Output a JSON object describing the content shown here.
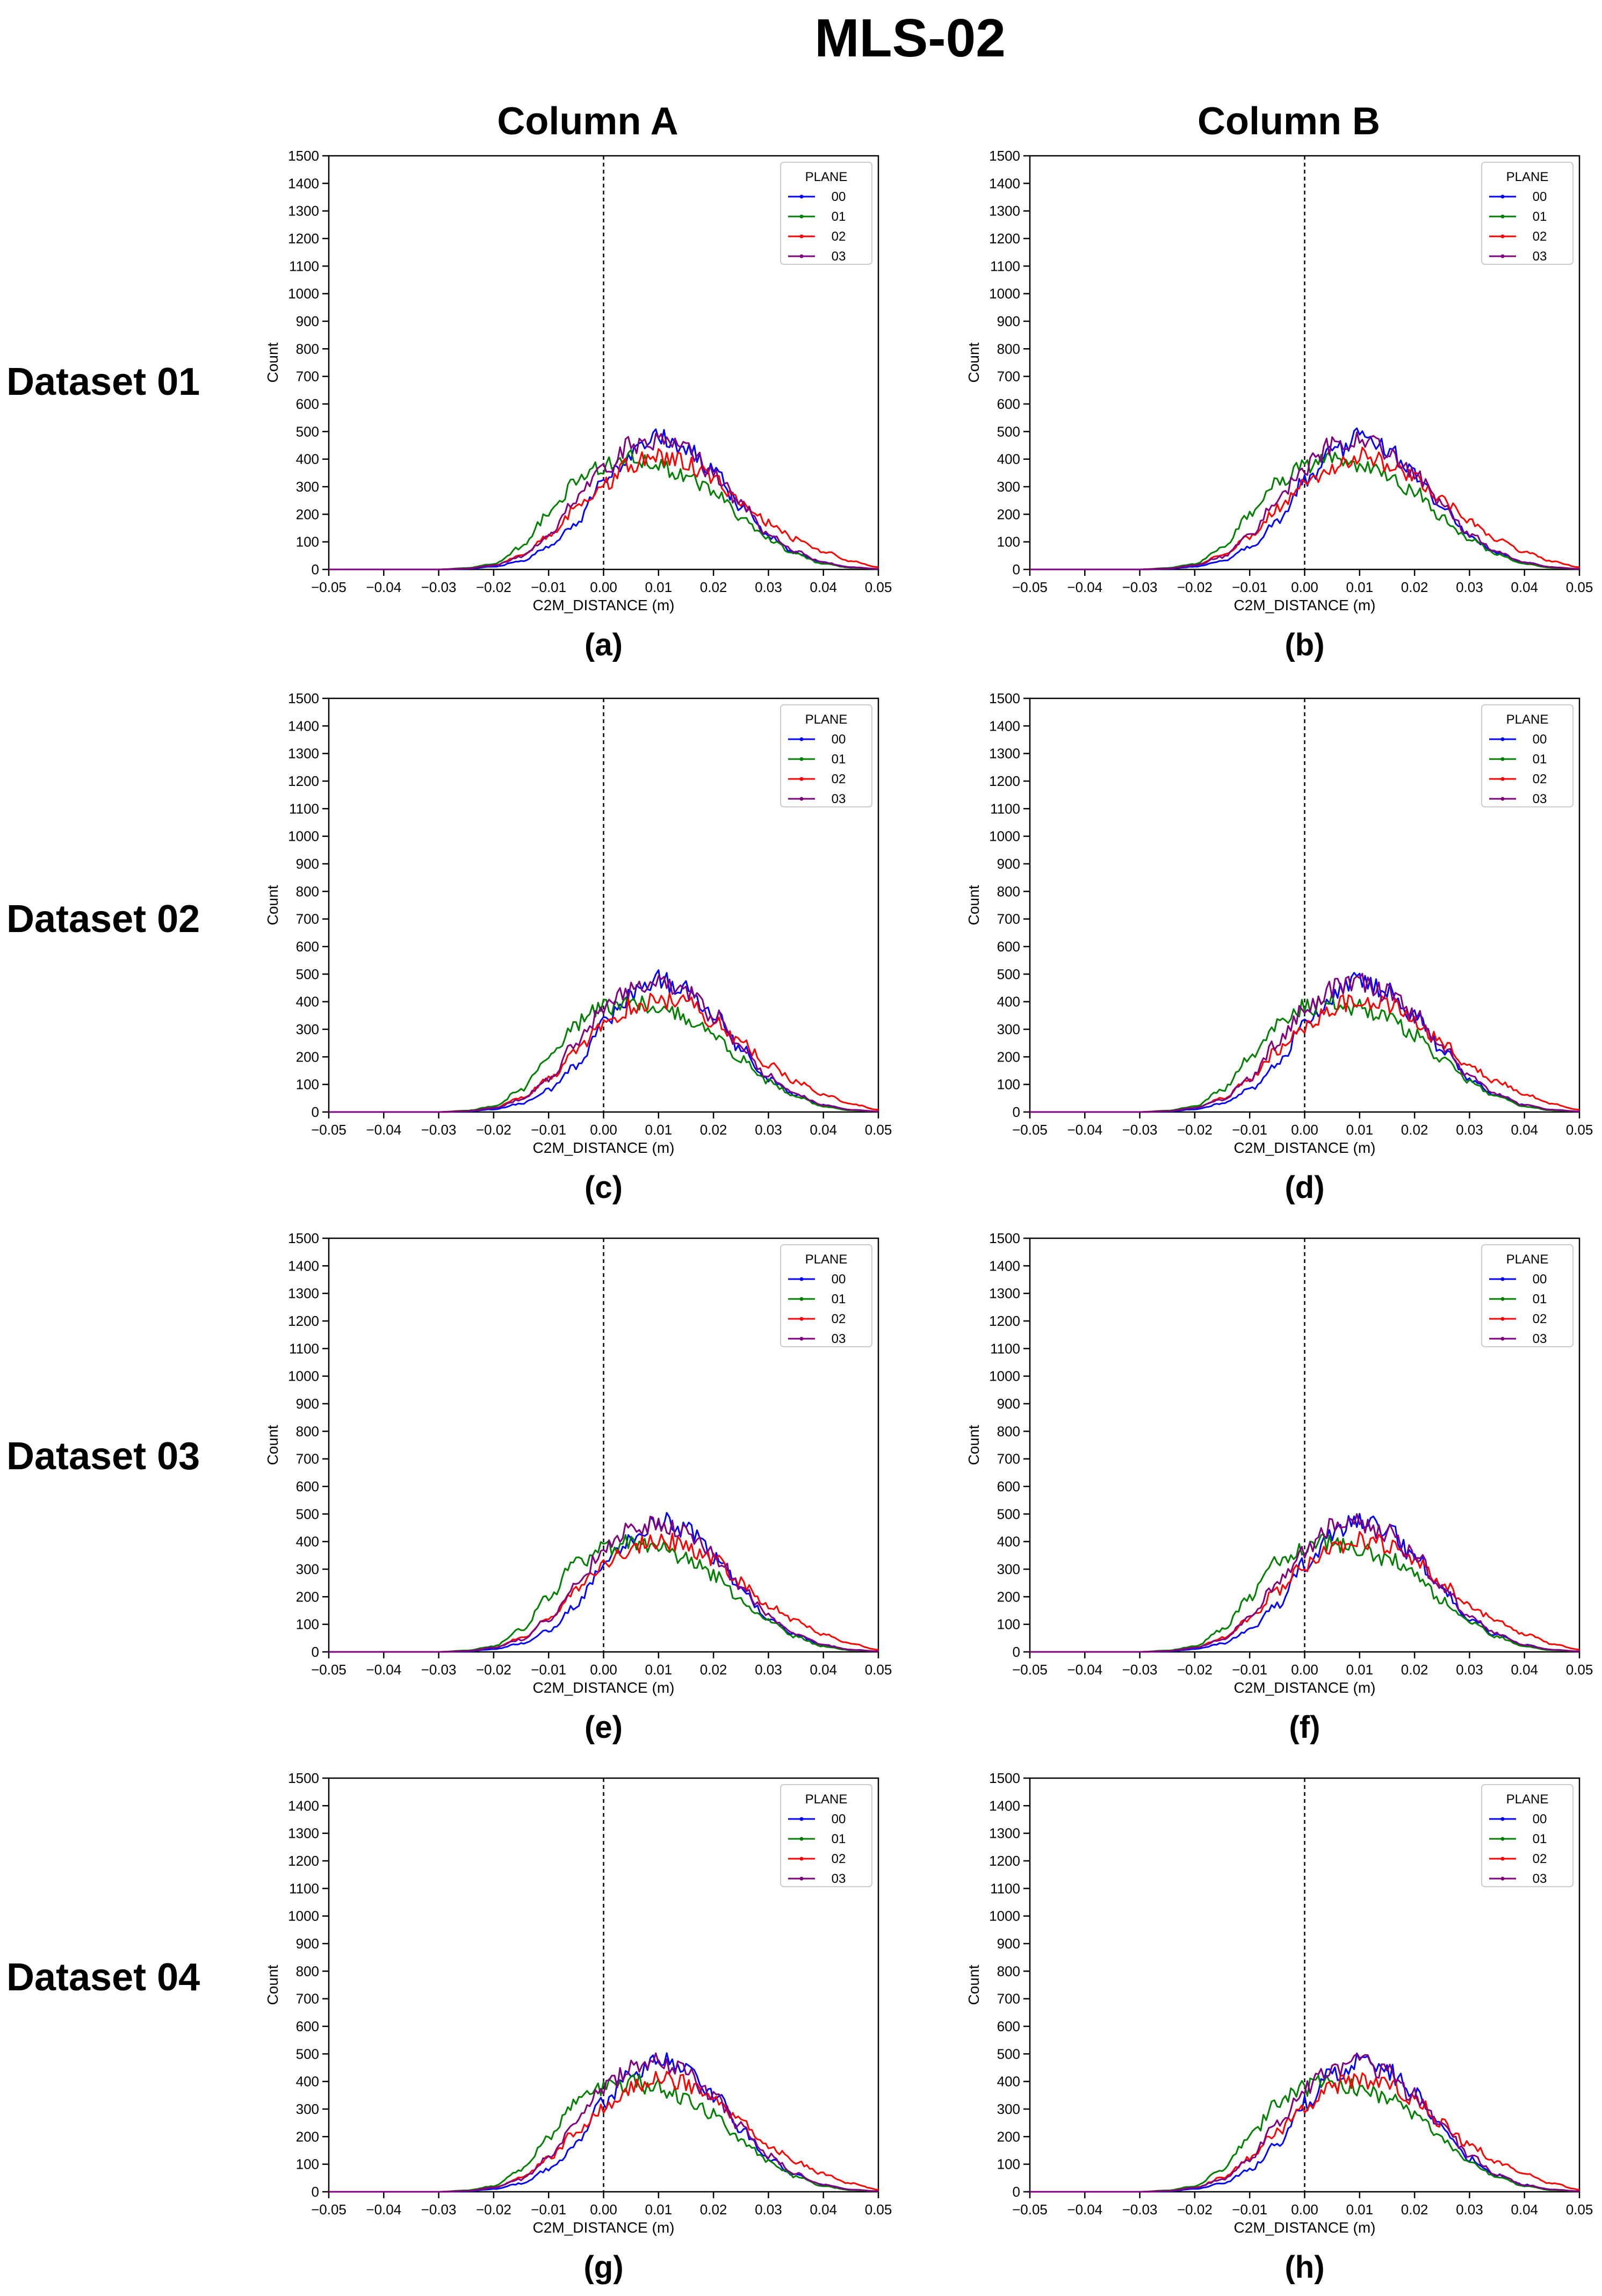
{
  "figure": {
    "title": "MLS-02",
    "column_titles": [
      "Column A",
      "Column B"
    ],
    "row_labels": [
      "Dataset 01",
      "Dataset 02",
      "Dataset 03",
      "Dataset 04"
    ],
    "panel_labels": [
      "(a)",
      "(b)",
      "(c)",
      "(d)",
      "(e)",
      "(f)",
      "(g)",
      "(h)"
    ]
  },
  "colors": {
    "00": "#0000ff",
    "01": "#008000",
    "02": "#ff0000",
    "03": "#800080",
    "zero_line": "#000000",
    "axis": "#000000"
  },
  "chart_data": {
    "type": "line",
    "panels": 8,
    "xlabel": "C2M_DISTANCE (m)",
    "ylabel": "Count",
    "xlim": [
      -0.05,
      0.05
    ],
    "ylim": [
      0,
      1500
    ],
    "xticks": [
      -0.05,
      -0.04,
      -0.03,
      -0.02,
      -0.01,
      0.0,
      0.01,
      0.02,
      0.03,
      0.04,
      0.05
    ],
    "xtick_labels": [
      "−0.05",
      "−0.04",
      "−0.03",
      "−0.02",
      "−0.01",
      "0.00",
      "0.01",
      "0.02",
      "0.03",
      "0.04",
      "0.05"
    ],
    "yticks": [
      0,
      100,
      200,
      300,
      400,
      500,
      600,
      700,
      800,
      900,
      1000,
      1100,
      1200,
      1300,
      1400,
      1500
    ],
    "reference_line_x": 0.0,
    "legend_title": "PLANE",
    "legend_position": "top-right",
    "x": [
      -0.05,
      -0.045,
      -0.04,
      -0.035,
      -0.03,
      -0.025,
      -0.02,
      -0.015,
      -0.01,
      -0.005,
      0.0,
      0.005,
      0.01,
      0.015,
      0.02,
      0.025,
      0.03,
      0.035,
      0.04,
      0.045,
      0.05
    ],
    "series": [
      {
        "name": "00",
        "values": [
          0,
          0,
          0,
          0,
          0,
          2,
          10,
          30,
          80,
          170,
          320,
          420,
          480,
          440,
          350,
          230,
          120,
          60,
          25,
          8,
          2
        ]
      },
      {
        "name": "01",
        "values": [
          0,
          0,
          0,
          0,
          0,
          5,
          20,
          80,
          200,
          320,
          380,
          400,
          380,
          340,
          280,
          190,
          110,
          55,
          20,
          6,
          2
        ]
      },
      {
        "name": "02",
        "values": [
          0,
          0,
          0,
          0,
          0,
          3,
          15,
          50,
          120,
          220,
          310,
          380,
          410,
          390,
          330,
          250,
          170,
          110,
          65,
          30,
          8
        ]
      },
      {
        "name": "03",
        "values": [
          0,
          0,
          0,
          0,
          0,
          3,
          15,
          45,
          120,
          250,
          370,
          450,
          470,
          430,
          350,
          240,
          130,
          65,
          25,
          8,
          2
        ]
      }
    ]
  }
}
